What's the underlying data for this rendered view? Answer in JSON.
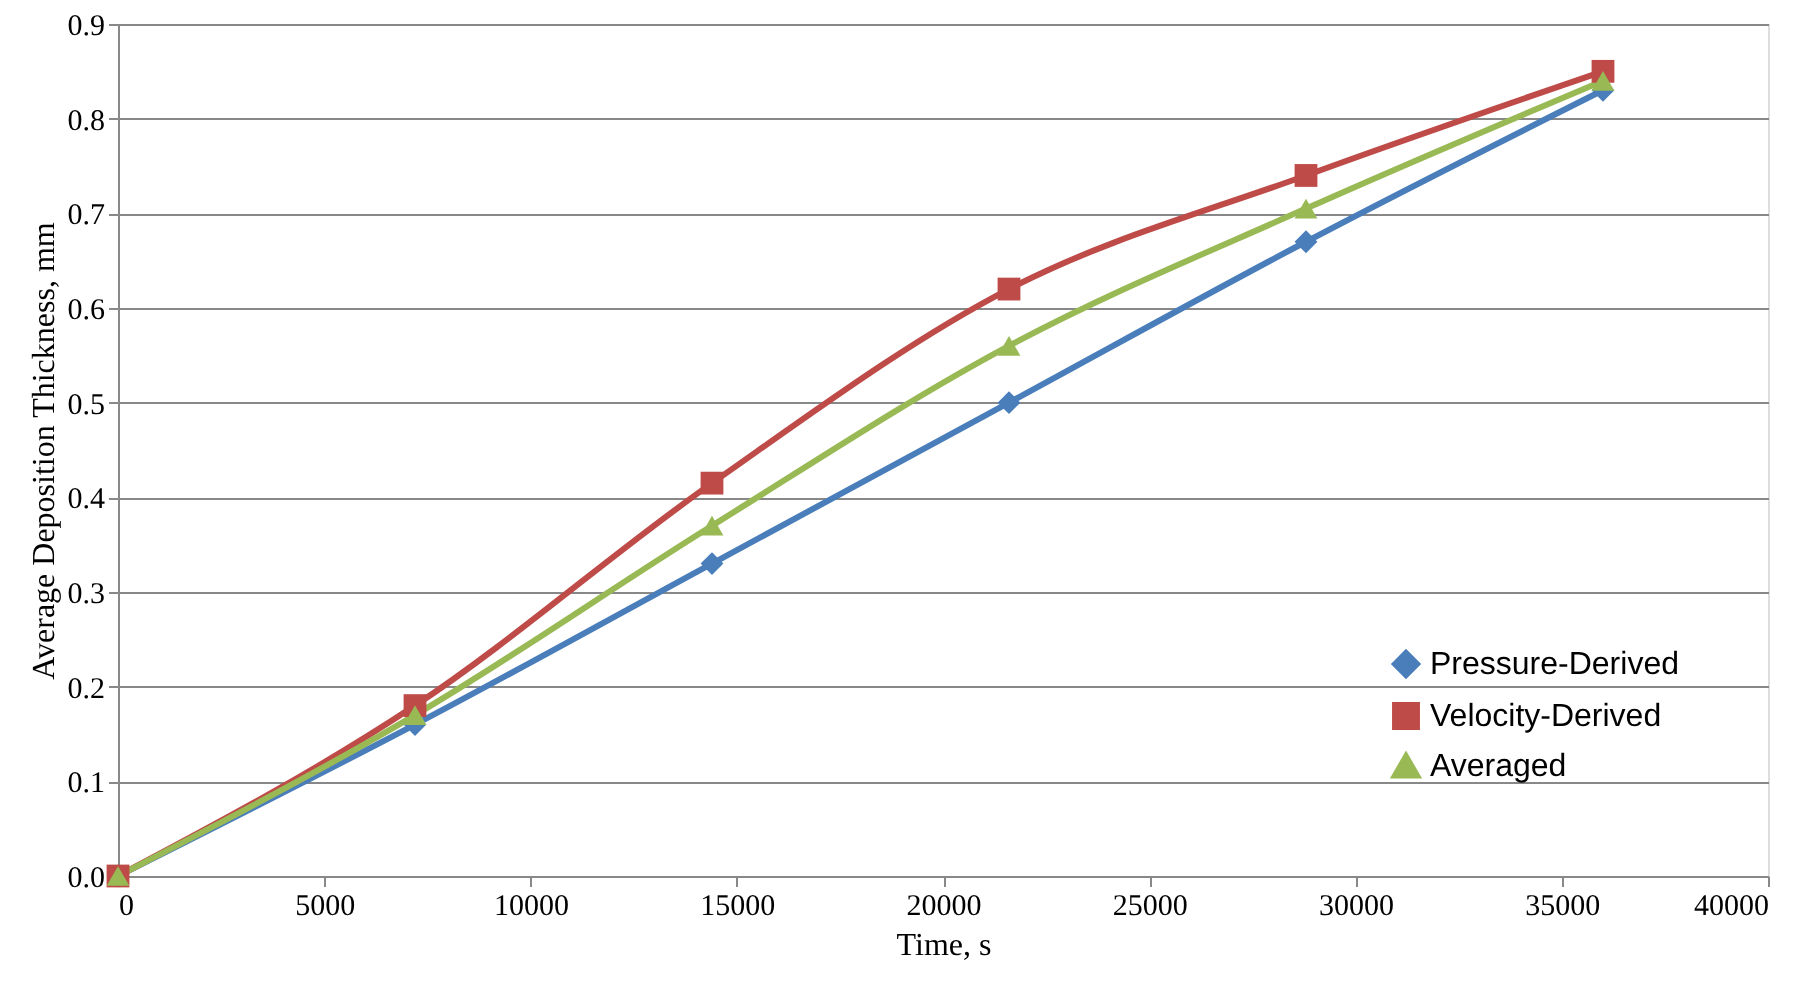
{
  "chart_data": {
    "type": "line",
    "xlabel": "Time, s",
    "ylabel": "Average Deposition Thickness, mm",
    "x": [
      0,
      7200,
      14400,
      21600,
      28800,
      36000
    ],
    "series": [
      {
        "name": "Pressure-Derived",
        "color": "#4a7ebb",
        "marker": "diamond",
        "values": [
          0,
          0.16,
          0.33,
          0.5,
          0.67,
          0.83
        ]
      },
      {
        "name": "Velocity-Derived",
        "color": "#be4b48",
        "marker": "square",
        "values": [
          0,
          0.18,
          0.415,
          0.62,
          0.74,
          0.85
        ]
      },
      {
        "name": "Averaged",
        "color": "#98b954",
        "marker": "triangle",
        "values": [
          0,
          0.17,
          0.37,
          0.56,
          0.705,
          0.84
        ]
      }
    ],
    "xlim": [
      0,
      40000
    ],
    "xticks": [
      0,
      5000,
      10000,
      15000,
      20000,
      25000,
      30000,
      35000,
      40000
    ],
    "ylim": [
      0,
      0.9
    ],
    "yticks": [
      {
        "value": 0,
        "label": "0.0"
      },
      0.1,
      0.2,
      0.3,
      0.4,
      0.5,
      0.6,
      0.7,
      0.8,
      0.9
    ],
    "grid": "y",
    "legend": "bottom right",
    "line_style": "solid"
  }
}
